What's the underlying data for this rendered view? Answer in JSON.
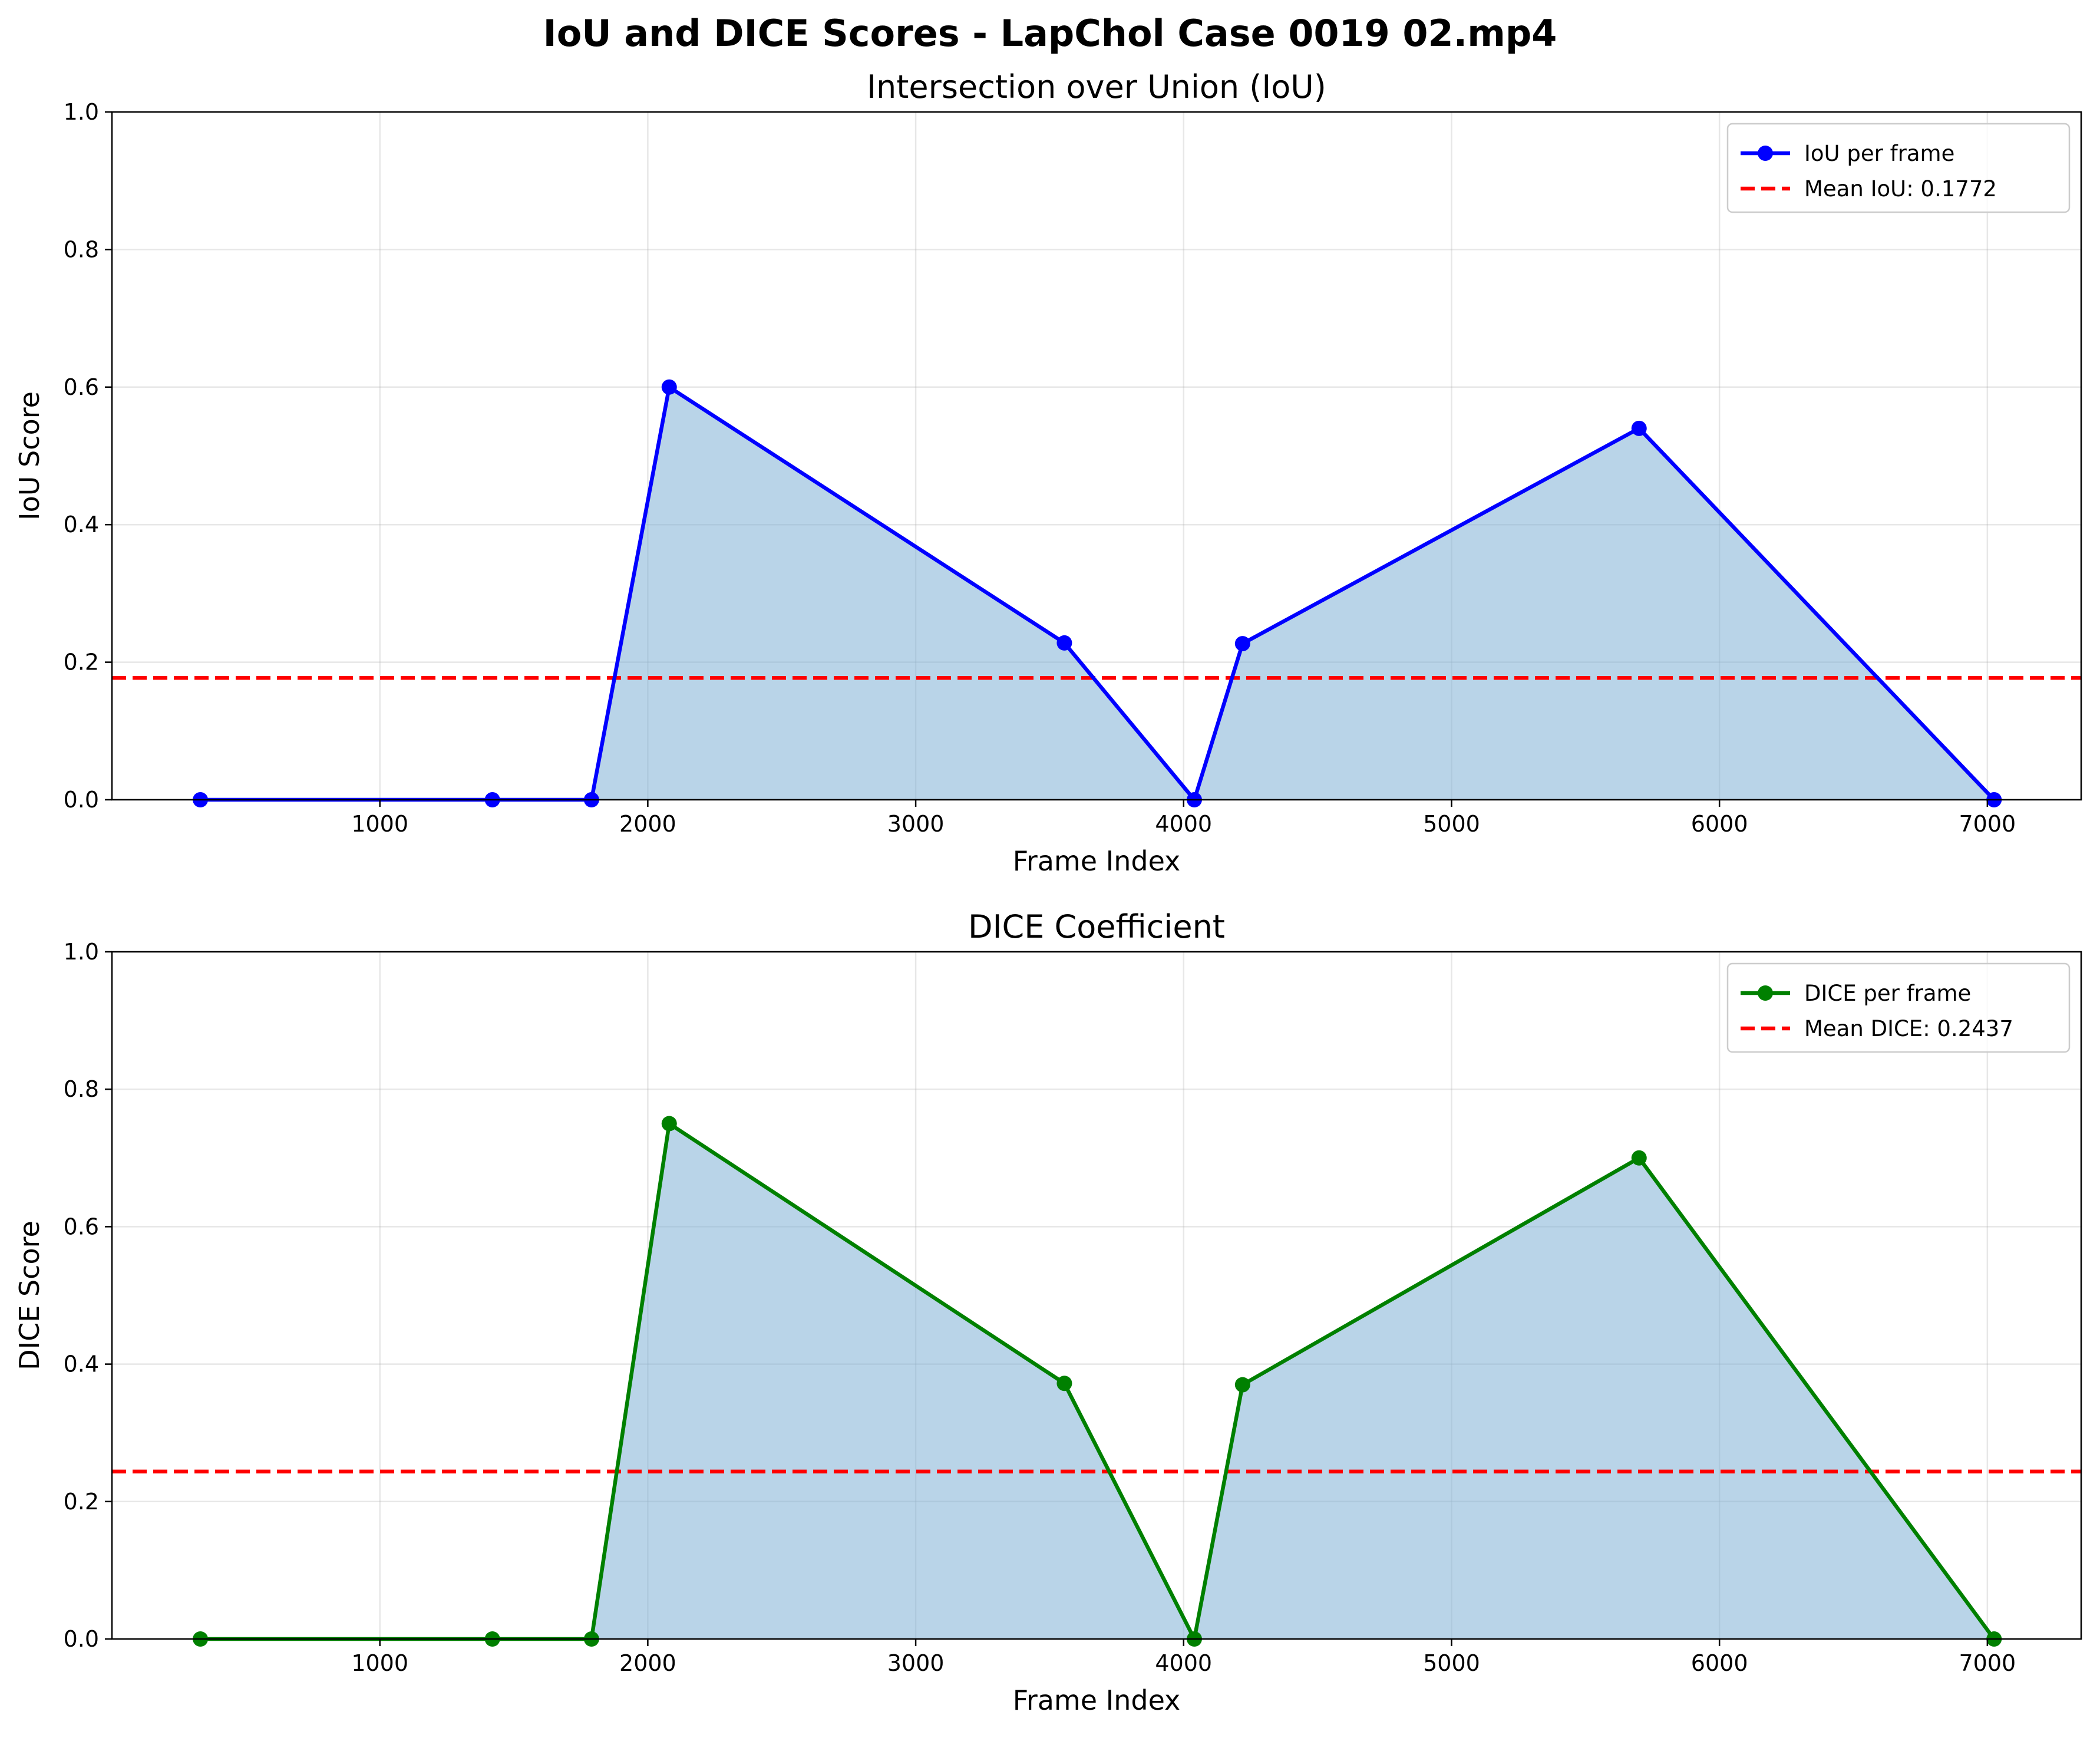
{
  "figure": {
    "suptitle": "IoU and DICE Scores - LapChol Case 0019 02.mp4"
  },
  "chart_data": [
    {
      "type": "line",
      "title": "Intersection over Union (IoU)",
      "xlabel": "Frame Index",
      "ylabel": "IoU Score",
      "xlim": [
        0,
        7350
      ],
      "ylim": [
        0,
        1.0
      ],
      "xticks": [
        1000,
        2000,
        3000,
        4000,
        5000,
        6000,
        7000
      ],
      "xtick_labels": [
        "1000",
        "2000",
        "3000",
        "4000",
        "5000",
        "6000",
        "7000"
      ],
      "yticks": [
        0.0,
        0.2,
        0.4,
        0.6,
        0.8,
        1.0
      ],
      "ytick_labels": [
        "0.0",
        "0.2",
        "0.4",
        "0.6",
        "0.8",
        "1.0"
      ],
      "grid": true,
      "legend_position": "top-right",
      "series": [
        {
          "name": "IoU per frame",
          "color": "#0000ff",
          "marker": "circle",
          "fill": true,
          "fill_color": "#7fb1d6",
          "x": [
            330,
            1420,
            1790,
            2080,
            3555,
            4040,
            4220,
            5700,
            7025
          ],
          "y": [
            0.0,
            0.0,
            0.0,
            0.6,
            0.228,
            0.0,
            0.227,
            0.54,
            0.0
          ]
        }
      ],
      "reference_line": {
        "name": "Mean IoU: 0.1772",
        "value": 0.1772,
        "color": "#ff0000",
        "style": "dashed"
      }
    },
    {
      "type": "line",
      "title": "DICE Coefficient",
      "xlabel": "Frame Index",
      "ylabel": "DICE Score",
      "xlim": [
        0,
        7350
      ],
      "ylim": [
        0,
        1.0
      ],
      "xticks": [
        1000,
        2000,
        3000,
        4000,
        5000,
        6000,
        7000
      ],
      "xtick_labels": [
        "1000",
        "2000",
        "3000",
        "4000",
        "5000",
        "6000",
        "7000"
      ],
      "yticks": [
        0.0,
        0.2,
        0.4,
        0.6,
        0.8,
        1.0
      ],
      "ytick_labels": [
        "0.0",
        "0.2",
        "0.4",
        "0.6",
        "0.8",
        "1.0"
      ],
      "grid": true,
      "legend_position": "top-right",
      "series": [
        {
          "name": "DICE per frame",
          "color": "#008000",
          "marker": "circle",
          "fill": true,
          "fill_color": "#7fb1d6",
          "x": [
            330,
            1420,
            1790,
            2080,
            3555,
            4040,
            4220,
            5700,
            7025
          ],
          "y": [
            0.0,
            0.0,
            0.0,
            0.75,
            0.372,
            0.0,
            0.37,
            0.7,
            0.0
          ]
        }
      ],
      "reference_line": {
        "name": "Mean DICE: 0.2437",
        "value": 0.2437,
        "color": "#ff0000",
        "style": "dashed"
      }
    }
  ]
}
